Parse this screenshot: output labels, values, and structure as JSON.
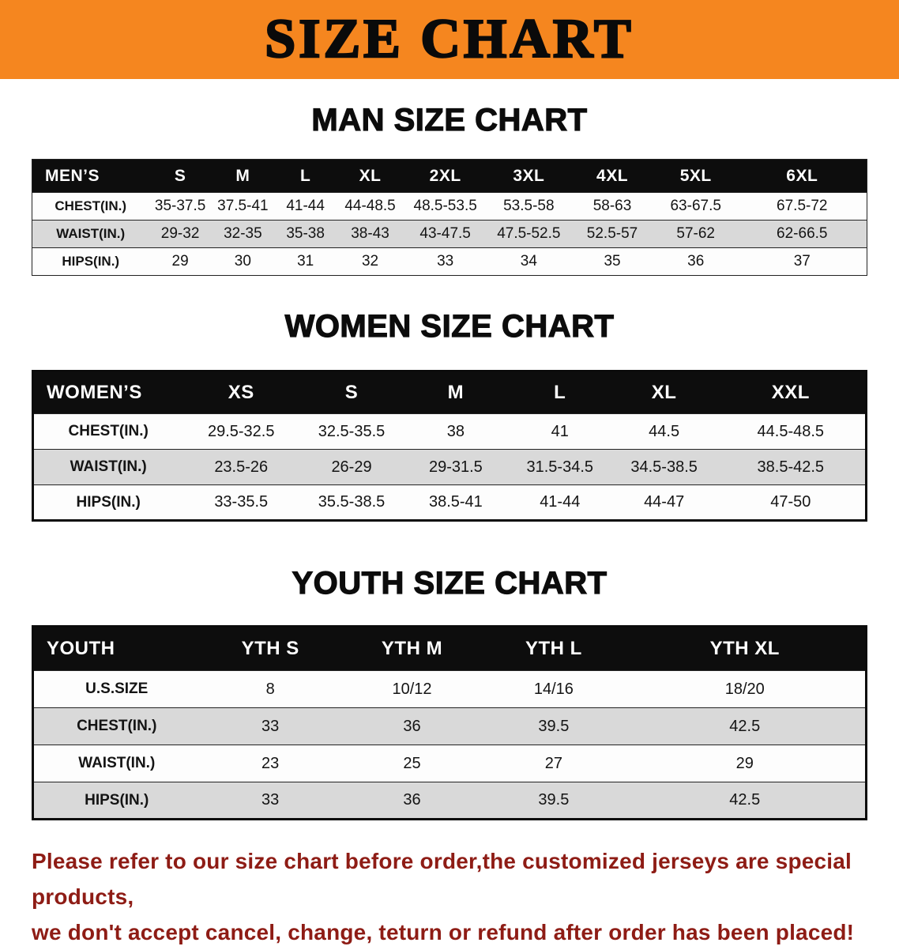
{
  "colors": {
    "banner_bg": "#F5861F",
    "header_row_bg": "#0d0d0d",
    "row_alt_bg": "#d9d9d9",
    "notice_text": "#8e1c15"
  },
  "banner": {
    "title": "SIZE CHART"
  },
  "sections": {
    "men": {
      "heading": "MAN SIZE CHART",
      "table": {
        "header": [
          "MEN’S",
          "S",
          "M",
          "L",
          "XL",
          "2XL",
          "3XL",
          "4XL",
          "5XL",
          "6XL"
        ],
        "rows": [
          [
            "CHEST(IN.)",
            "35-37.5",
            "37.5-41",
            "41-44",
            "44-48.5",
            "48.5-53.5",
            "53.5-58",
            "58-63",
            "63-67.5",
            "67.5-72"
          ],
          [
            "WAIST(IN.)",
            "29-32",
            "32-35",
            "35-38",
            "38-43",
            "43-47.5",
            "47.5-52.5",
            "52.5-57",
            "57-62",
            "62-66.5"
          ],
          [
            "HIPS(IN.)",
            "29",
            "30",
            "31",
            "32",
            "33",
            "34",
            "35",
            "36",
            "37"
          ]
        ]
      }
    },
    "women": {
      "heading": "WOMEN SIZE CHART",
      "table": {
        "header": [
          "WOMEN’S",
          "XS",
          "S",
          "M",
          "L",
          "XL",
          "XXL"
        ],
        "rows": [
          [
            "CHEST(IN.)",
            "29.5-32.5",
            "32.5-35.5",
            "38",
            "41",
            "44.5",
            "44.5-48.5"
          ],
          [
            "WAIST(IN.)",
            "23.5-26",
            "26-29",
            "29-31.5",
            "31.5-34.5",
            "34.5-38.5",
            "38.5-42.5"
          ],
          [
            "HIPS(IN.)",
            "33-35.5",
            "35.5-38.5",
            "38.5-41",
            "41-44",
            "44-47",
            "47-50"
          ]
        ]
      }
    },
    "youth": {
      "heading": "YOUTH SIZE CHART",
      "table": {
        "header": [
          "YOUTH",
          "YTH S",
          "YTH M",
          "YTH L",
          "YTH XL"
        ],
        "rows": [
          [
            "U.S.SIZE",
            "8",
            "10/12",
            "14/16",
            "18/20"
          ],
          [
            "CHEST(IN.)",
            "33",
            "36",
            "39.5",
            "42.5"
          ],
          [
            "WAIST(IN.)",
            "23",
            "25",
            "27",
            "29"
          ],
          [
            "HIPS(IN.)",
            "33",
            "36",
            "39.5",
            "42.5"
          ]
        ]
      }
    }
  },
  "footer": {
    "line1": "Please refer to our size chart before order,the customized jerseys are special products,",
    "line2": "we don't accept cancel, change, teturn or refund after order has been placed!"
  }
}
